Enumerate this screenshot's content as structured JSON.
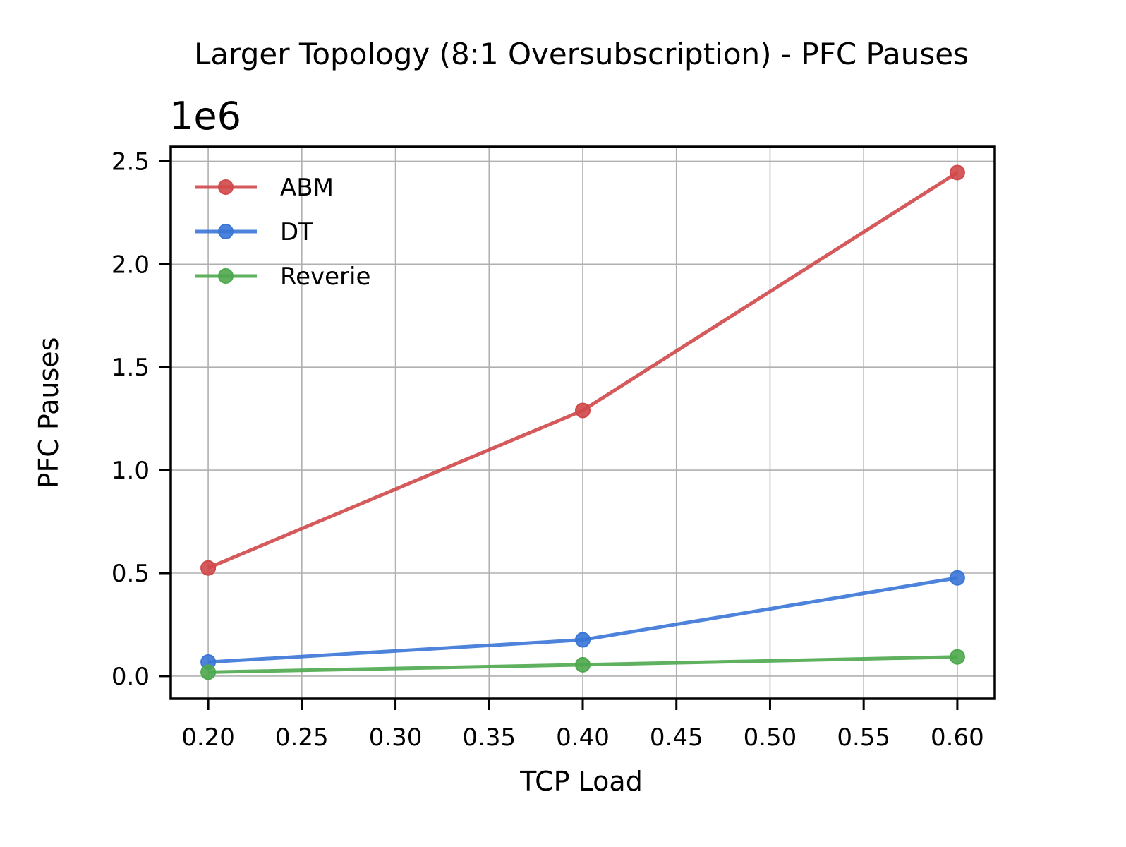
{
  "chart_data": {
    "type": "line",
    "title": "Larger Topology (8:1 Oversubscription) - PFC Pauses",
    "xlabel": "TCP Load",
    "ylabel": "PFC Pauses",
    "y_offset_label": "1e6",
    "y_multiplier": 1000000,
    "x": [
      0.2,
      0.4,
      0.6
    ],
    "xlim": [
      0.18,
      0.62
    ],
    "ylim": [
      -0.11,
      2.57
    ],
    "xticks": [
      0.2,
      0.25,
      0.3,
      0.35,
      0.4,
      0.45,
      0.5,
      0.55,
      0.6
    ],
    "xtick_labels": [
      "0.20",
      "0.25",
      "0.30",
      "0.35",
      "0.40",
      "0.45",
      "0.50",
      "0.55",
      "0.60"
    ],
    "yticks": [
      0.0,
      0.5,
      1.0,
      1.5,
      2.0,
      2.5
    ],
    "ytick_labels": [
      "0.0",
      "0.5",
      "1.0",
      "1.5",
      "2.0",
      "2.5"
    ],
    "grid": true,
    "legend_position": "top-left",
    "series": [
      {
        "name": "ABM",
        "color": "#d0484a",
        "values": [
          0.525,
          1.29,
          2.445
        ]
      },
      {
        "name": "DT",
        "color": "#3a76d6",
        "values": [
          0.068,
          0.176,
          0.477
        ]
      },
      {
        "name": "Reverie",
        "color": "#4ea84e",
        "values": [
          0.019,
          0.055,
          0.093
        ]
      }
    ]
  }
}
